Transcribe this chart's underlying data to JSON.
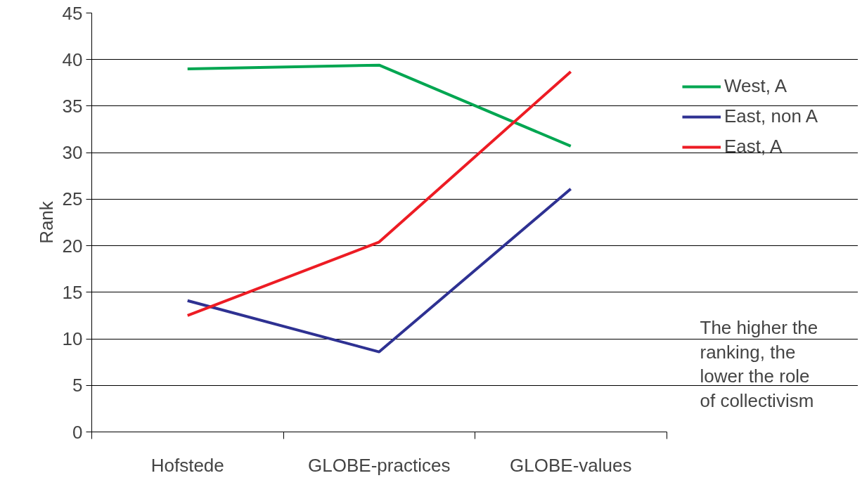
{
  "chart_data": {
    "type": "line",
    "ylabel": "Rank",
    "categories": [
      "Hofstede",
      "GLOBE-practices",
      "GLOBE-values"
    ],
    "series": [
      {
        "name": "West, A",
        "color": "#00a651",
        "values": [
          39.0,
          39.4,
          30.7
        ]
      },
      {
        "name": "East, non A",
        "color": "#2e3192",
        "values": [
          14.1,
          8.6,
          26.1
        ]
      },
      {
        "name": "East, A",
        "color": "#ed1c24",
        "values": [
          12.5,
          20.4,
          38.7
        ]
      }
    ],
    "ylim": [
      0,
      45
    ],
    "yticks": [
      0,
      5,
      10,
      15,
      20,
      25,
      30,
      35,
      40,
      45
    ],
    "grid": "y",
    "legend": "right",
    "marker": "none",
    "line_style": "solid",
    "annotations": [
      "The higher the ranking, the lower the role of collectivism"
    ]
  }
}
